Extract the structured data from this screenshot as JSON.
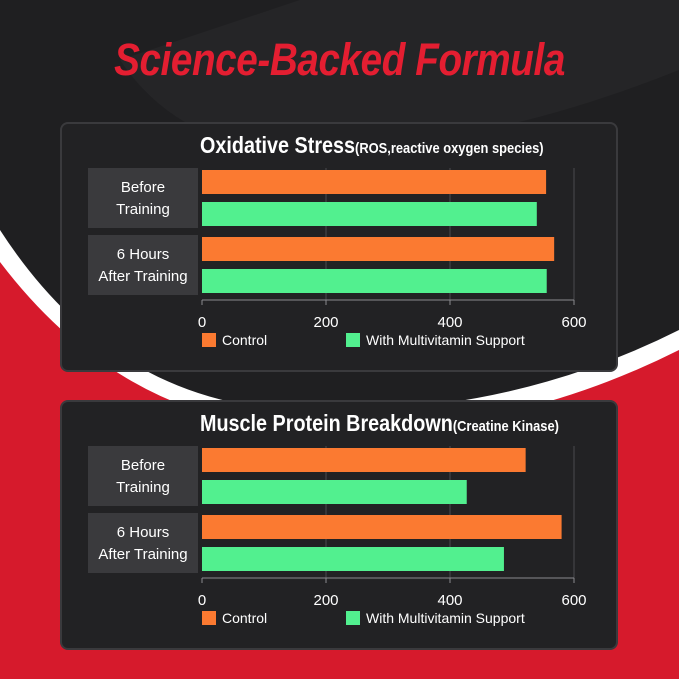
{
  "headline": "Science-Backed Formula",
  "colors": {
    "headline": "#e41e31",
    "control": "#fb7a31",
    "multivitamin": "#52f08f",
    "category_box": "#3a3a3d"
  },
  "chart_data": [
    {
      "type": "bar",
      "orientation": "horizontal",
      "title": "Oxidative Stress",
      "subtitle": "(ROS,reactive oxygen species)",
      "categories": [
        [
          "Before",
          "Training"
        ],
        [
          "6 Hours",
          "After Training"
        ]
      ],
      "series": [
        {
          "name": "Control",
          "values": [
            555,
            568
          ]
        },
        {
          "name": "With Multivitamin Support",
          "values": [
            540,
            556
          ]
        }
      ],
      "xlim": [
        0,
        600
      ],
      "xticks": [
        0,
        200,
        400,
        600
      ],
      "grid": "vertical",
      "legend": "bottom"
    },
    {
      "type": "bar",
      "orientation": "horizontal",
      "title": "Muscle Protein Breakdown",
      "subtitle": "(Creatine Kinase)",
      "categories": [
        [
          "Before",
          "Training"
        ],
        [
          "6 Hours",
          "After Training"
        ]
      ],
      "series": [
        {
          "name": "Control",
          "values": [
            522,
            580
          ]
        },
        {
          "name": "With Multivitamin Support",
          "values": [
            427,
            487
          ]
        }
      ],
      "xlim": [
        0,
        600
      ],
      "xticks": [
        0,
        200,
        400,
        600
      ],
      "grid": "vertical",
      "legend": "bottom"
    }
  ]
}
